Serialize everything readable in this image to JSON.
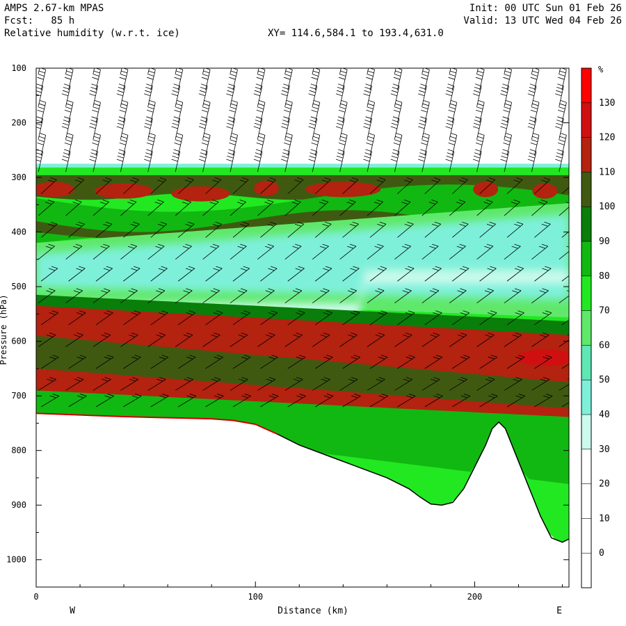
{
  "header": {
    "model": "AMPS 2.67-km MPAS",
    "fcst": "Fcst:   85 h",
    "field": "Relative humidity (w.r.t. ice)",
    "init": "Init: 00 UTC Sun 01 Feb 26",
    "valid": "Valid: 13 UTC Wed 04 Feb 26",
    "xy": "XY= 114.6,584.1 to 193.4,631.0"
  },
  "chart_data": {
    "type": "heatmap",
    "title": "Relative humidity (w.r.t. ice)",
    "xlabel": "Distance (km)",
    "ylabel": "Pressure (hPa)",
    "xlim": [
      0,
      243
    ],
    "ylim": [
      1050,
      100
    ],
    "x_ticks": [
      0,
      100,
      200
    ],
    "y_ticks": [
      100,
      200,
      300,
      400,
      500,
      600,
      700,
      800,
      900,
      1000
    ],
    "x_end_labels": {
      "left": "W",
      "right": "E"
    },
    "colorbar": {
      "unit": "%",
      "levels": [
        -10,
        0,
        10,
        20,
        30,
        40,
        50,
        60,
        70,
        80,
        90,
        100,
        110,
        120,
        130,
        140
      ],
      "tick_labels": [
        0,
        10,
        20,
        30,
        40,
        50,
        60,
        70,
        80,
        90,
        100,
        110,
        120,
        130
      ],
      "colors": [
        "#ffffff",
        "#ffffff",
        "#ffffff",
        "#ffffff",
        "#ccfaec",
        "#7ef0da",
        "#5fe7b4",
        "#5fe86a",
        "#22e822",
        "#11b811",
        "#0a7e0a",
        "#3f5a10",
        "#b42210",
        "#d01010",
        "#ff0000"
      ]
    },
    "terrain_surface": [
      [
        0,
        732
      ],
      [
        20,
        735
      ],
      [
        40,
        738
      ],
      [
        60,
        740
      ],
      [
        80,
        742
      ],
      [
        90,
        745
      ],
      [
        100,
        752
      ],
      [
        110,
        770
      ],
      [
        120,
        790
      ],
      [
        130,
        805
      ],
      [
        140,
        820
      ],
      [
        150,
        835
      ],
      [
        160,
        850
      ],
      [
        170,
        870
      ],
      [
        175,
        885
      ],
      [
        180,
        898
      ],
      [
        185,
        900
      ],
      [
        190,
        895
      ],
      [
        195,
        870
      ],
      [
        200,
        830
      ],
      [
        205,
        790
      ],
      [
        208,
        760
      ],
      [
        211,
        748
      ],
      [
        214,
        760
      ],
      [
        218,
        800
      ],
      [
        222,
        840
      ],
      [
        226,
        880
      ],
      [
        230,
        920
      ],
      [
        235,
        960
      ],
      [
        240,
        968
      ],
      [
        243,
        962
      ]
    ],
    "rh_layers": [
      {
        "name": "top-edge",
        "rh": 40,
        "p_top": 275,
        "p_bot": 285
      },
      {
        "name": "upper-green",
        "rh": 75,
        "p_top": 280,
        "p_bot": 300
      },
      {
        "name": "upper-dark",
        "rh": 105,
        "p_top": 295,
        "p_bot": 330
      },
      {
        "name": "upper-red-patches",
        "rh": 115,
        "p_top": 310,
        "p_bot": 335
      },
      {
        "name": "mid-green-band",
        "rh": 85,
        "p_top": 340,
        "p_bot": 420
      },
      {
        "name": "dry-tongue",
        "rh": 45,
        "p_top": 400,
        "p_bot": 520
      },
      {
        "name": "lower-red",
        "rh": 115,
        "p_top": 530,
        "p_bot": 640
      },
      {
        "name": "low-level-moist",
        "rh": 105,
        "p_top": 600,
        "p_bot": 760
      }
    ]
  }
}
